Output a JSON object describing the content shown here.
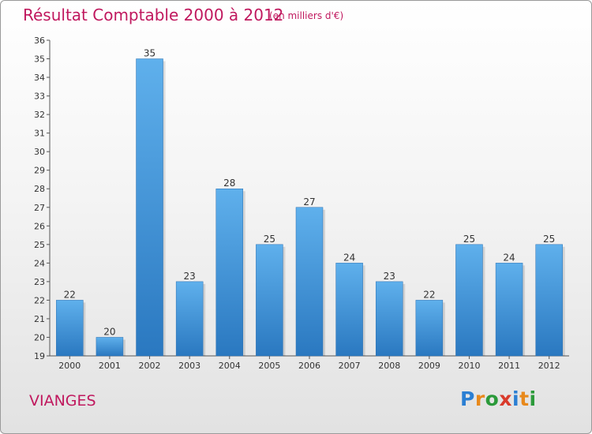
{
  "chart_data": {
    "type": "bar",
    "title": "Résultat Comptable 2000 à 2012",
    "subtitle": "(en milliers d'€)",
    "categories": [
      "2000",
      "2001",
      "2002",
      "2003",
      "2004",
      "2005",
      "2006",
      "2007",
      "2008",
      "2009",
      "2010",
      "2011",
      "2012"
    ],
    "values": [
      22,
      20,
      35,
      23,
      28,
      25,
      27,
      24,
      23,
      22,
      25,
      24,
      25
    ],
    "ylim": [
      19,
      36
    ],
    "yticks": [
      19,
      20,
      21,
      22,
      23,
      24,
      25,
      26,
      27,
      28,
      29,
      30,
      31,
      32,
      33,
      34,
      35,
      36
    ],
    "xlabel": "",
    "ylabel": "",
    "grid": false,
    "bar_color": "#3a8fd6",
    "title_color": "#c0185e"
  },
  "footer": {
    "commune": "VIANGES",
    "logo": {
      "letters": [
        "P",
        "r",
        "o",
        "x",
        "i",
        "t",
        "i"
      ],
      "colors": [
        "#2b7fd3",
        "#e8891c",
        "#2b9a3a",
        "#d93a2b",
        "#2b7fd3",
        "#e8891c",
        "#2b9a3a"
      ]
    }
  }
}
